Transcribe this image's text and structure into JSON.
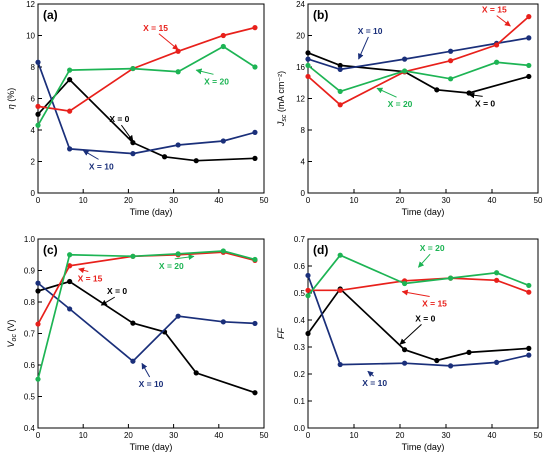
{
  "colors": {
    "x0": "#000000",
    "x10": "#1a2f7a",
    "x15": "#e8201b",
    "x20": "#1db454"
  },
  "chart_data": [
    {
      "type": "line",
      "panel_label": "(a)",
      "xlabel": "Time (day)",
      "ylabel_main": "η",
      "ylabel_sub": "",
      "ylabel_suffix": " (%)",
      "xlim": [
        0,
        50
      ],
      "ylim": [
        0,
        12
      ],
      "xticks": [
        0,
        10,
        20,
        30,
        40,
        50
      ],
      "yticks": [
        0,
        2,
        4,
        6,
        8,
        10,
        12
      ],
      "series": [
        {
          "name": "X = 0",
          "color_key": "x0",
          "x": [
            0,
            7,
            21,
            28,
            35,
            48
          ],
          "y": [
            5.0,
            7.2,
            3.2,
            2.3,
            2.05,
            2.2
          ]
        },
        {
          "name": "X = 10",
          "color_key": "x10",
          "x": [
            0,
            7,
            21,
            31,
            41,
            48
          ],
          "y": [
            8.3,
            2.8,
            2.5,
            3.05,
            3.3,
            3.85
          ]
        },
        {
          "name": "X = 15",
          "color_key": "x15",
          "x": [
            0,
            7,
            21,
            31,
            41,
            48
          ],
          "y": [
            5.5,
            5.2,
            7.9,
            9.0,
            10.0,
            10.5
          ]
        },
        {
          "name": "X = 20",
          "color_key": "x20",
          "x": [
            0,
            7,
            21,
            31,
            41,
            48
          ],
          "y": [
            4.3,
            7.8,
            7.9,
            7.7,
            9.3,
            8.0
          ]
        }
      ],
      "annotations": [
        {
          "text": "X = 15",
          "color_key": "x15",
          "tx": 26,
          "ty": 10.3,
          "ax": 31,
          "ay": 9.1
        },
        {
          "text": "X = 20",
          "color_key": "x20",
          "tx": 39.5,
          "ty": 6.9,
          "ax": 35,
          "ay": 7.8
        },
        {
          "text": "X = 0",
          "color_key": "x0",
          "tx": 18,
          "ty": 4.5,
          "ax": 21,
          "ay": 3.3
        },
        {
          "text": "X = 10",
          "color_key": "x10",
          "tx": 14,
          "ty": 1.5,
          "ax": 10,
          "ay": 2.7
        }
      ]
    },
    {
      "type": "line",
      "panel_label": "(b)",
      "xlabel": "Time (day)",
      "ylabel_main": "J",
      "ylabel_sub": "sc",
      "ylabel_suffix": " (mA cm⁻²)",
      "xlim": [
        0,
        50
      ],
      "ylim": [
        0,
        24
      ],
      "xticks": [
        0,
        10,
        20,
        30,
        40,
        50
      ],
      "yticks": [
        0,
        4,
        8,
        12,
        16,
        20,
        24
      ],
      "series": [
        {
          "name": "X = 0",
          "color_key": "x0",
          "x": [
            0,
            7,
            21,
            28,
            35,
            48
          ],
          "y": [
            17.8,
            16.2,
            15.4,
            13.1,
            12.7,
            14.8
          ]
        },
        {
          "name": "X = 10",
          "color_key": "x10",
          "x": [
            0,
            7,
            21,
            31,
            41,
            48
          ],
          "y": [
            17.0,
            15.7,
            17.0,
            18.0,
            19.0,
            19.7
          ]
        },
        {
          "name": "X = 15",
          "color_key": "x15",
          "x": [
            0,
            7,
            21,
            31,
            41,
            48
          ],
          "y": [
            14.8,
            11.2,
            15.4,
            16.8,
            18.8,
            22.4
          ]
        },
        {
          "name": "X = 20",
          "color_key": "x20",
          "x": [
            0,
            7,
            21,
            31,
            41,
            48
          ],
          "y": [
            16.2,
            12.9,
            15.5,
            14.5,
            16.6,
            16.2
          ]
        }
      ],
      "annotations": [
        {
          "text": "X = 15",
          "color_key": "x15",
          "tx": 40.5,
          "ty": 22.9,
          "ax": 44,
          "ay": 21.2
        },
        {
          "text": "X = 10",
          "color_key": "x10",
          "tx": 13.5,
          "ty": 20.2,
          "ax": 11,
          "ay": 17.0
        },
        {
          "text": "X = 20",
          "color_key": "x20",
          "tx": 20,
          "ty": 10.9,
          "ax": 15,
          "ay": 13.3
        },
        {
          "text": "X = 0",
          "color_key": "x0",
          "tx": 38.5,
          "ty": 11.0,
          "ax": 35,
          "ay": 12.5
        }
      ]
    },
    {
      "type": "line",
      "panel_label": "(c)",
      "xlabel": "Time (day)",
      "ylabel_main": "V",
      "ylabel_sub": "oc",
      "ylabel_suffix": " (V)",
      "xlim": [
        0,
        50
      ],
      "ylim": [
        0.4,
        1.0
      ],
      "xticks": [
        0,
        10,
        20,
        30,
        40,
        50
      ],
      "yticks": [
        0.4,
        0.5,
        0.6,
        0.7,
        0.8,
        0.9,
        1.0
      ],
      "series": [
        {
          "name": "X = 0",
          "color_key": "x0",
          "x": [
            0,
            7,
            21,
            28,
            35,
            48
          ],
          "y": [
            0.835,
            0.865,
            0.733,
            0.705,
            0.575,
            0.512
          ]
        },
        {
          "name": "X = 10",
          "color_key": "x10",
          "x": [
            0,
            7,
            21,
            31,
            41,
            48
          ],
          "y": [
            0.86,
            0.778,
            0.612,
            0.755,
            0.737,
            0.732
          ]
        },
        {
          "name": "X = 15",
          "color_key": "x15",
          "x": [
            0,
            7,
            21,
            31,
            41,
            48
          ],
          "y": [
            0.73,
            0.915,
            0.945,
            0.95,
            0.958,
            0.932
          ]
        },
        {
          "name": "X = 20",
          "color_key": "x20",
          "x": [
            0,
            7,
            21,
            31,
            41,
            48
          ],
          "y": [
            0.555,
            0.95,
            0.945,
            0.953,
            0.962,
            0.935
          ]
        }
      ],
      "annotations": [
        {
          "text": "X = 15",
          "color_key": "x15",
          "tx": 11.5,
          "ty": 0.865,
          "ax": 9,
          "ay": 0.905
        },
        {
          "text": "X = 20",
          "color_key": "x20",
          "tx": 29.5,
          "ty": 0.905,
          "ax": 34.5,
          "ay": 0.945
        },
        {
          "text": "X = 0",
          "color_key": "x0",
          "tx": 17.5,
          "ty": 0.825,
          "ax": 14,
          "ay": 0.79
        },
        {
          "text": "X = 10",
          "color_key": "x10",
          "tx": 25,
          "ty": 0.53,
          "ax": 23,
          "ay": 0.605
        }
      ]
    },
    {
      "type": "line",
      "panel_label": "(d)",
      "xlabel": "Time (day)",
      "ylabel_main": "FF",
      "ylabel_sub": "",
      "ylabel_suffix": "",
      "xlim": [
        0,
        50
      ],
      "ylim": [
        0,
        0.7
      ],
      "xticks": [
        0,
        10,
        20,
        30,
        40,
        50
      ],
      "yticks": [
        0,
        0.1,
        0.2,
        0.3,
        0.4,
        0.5,
        0.6,
        0.7
      ],
      "series": [
        {
          "name": "X = 0",
          "color_key": "x0",
          "x": [
            0,
            7,
            21,
            28,
            35,
            48
          ],
          "y": [
            0.35,
            0.515,
            0.29,
            0.25,
            0.28,
            0.295
          ]
        },
        {
          "name": "X = 10",
          "color_key": "x10",
          "x": [
            0,
            7,
            21,
            31,
            41,
            48
          ],
          "y": [
            0.565,
            0.235,
            0.24,
            0.23,
            0.243,
            0.27
          ]
        },
        {
          "name": "X = 15",
          "color_key": "x15",
          "x": [
            0,
            7,
            21,
            31,
            41,
            48
          ],
          "y": [
            0.51,
            0.51,
            0.545,
            0.555,
            0.547,
            0.503
          ]
        },
        {
          "name": "X = 20",
          "color_key": "x20",
          "x": [
            0,
            7,
            21,
            31,
            41,
            48
          ],
          "y": [
            0.49,
            0.64,
            0.535,
            0.555,
            0.575,
            0.528
          ]
        }
      ],
      "annotations": [
        {
          "text": "X = 20",
          "color_key": "x20",
          "tx": 27,
          "ty": 0.655,
          "ax": 24,
          "ay": 0.595
        },
        {
          "text": "X = 15",
          "color_key": "x15",
          "tx": 27.5,
          "ty": 0.45,
          "ax": 20.5,
          "ay": 0.505
        },
        {
          "text": "X = 0",
          "color_key": "x0",
          "tx": 25.5,
          "ty": 0.395,
          "ax": 20,
          "ay": 0.31
        },
        {
          "text": "X = 10",
          "color_key": "x10",
          "tx": 14.5,
          "ty": 0.155,
          "ax": 13,
          "ay": 0.21
        }
      ]
    }
  ]
}
